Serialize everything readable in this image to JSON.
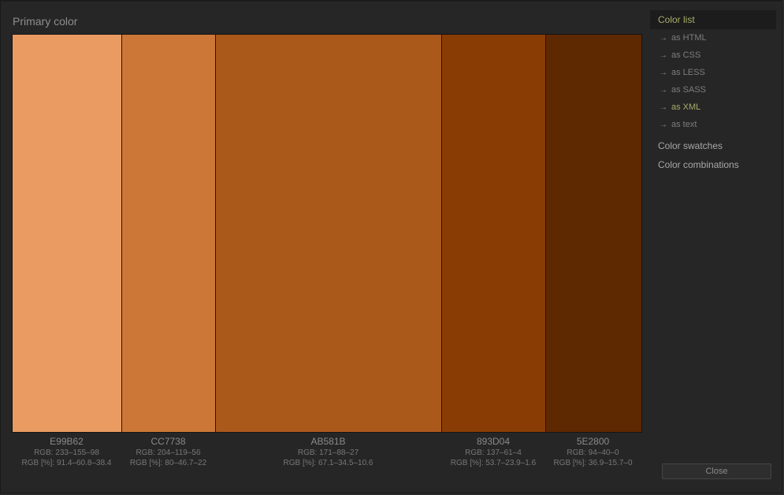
{
  "title": "Primary color",
  "swatches": [
    {
      "hex": "E99B62",
      "color": "#E99B62",
      "rgb": "RGB: 233–155–98",
      "rgb_pct": "RGB [%]: 91.4–60.8–38.4"
    },
    {
      "hex": "CC7738",
      "color": "#CC7738",
      "rgb": "RGB: 204–119–56",
      "rgb_pct": "RGB [%]: 80–46.7–22"
    },
    {
      "hex": "AB581B",
      "color": "#AB581B",
      "rgb": "RGB: 171–88–27",
      "rgb_pct": "RGB [%]: 67.1–34.5–10.6"
    },
    {
      "hex": "893D04",
      "color": "#893D04",
      "rgb": "RGB: 137–61–4",
      "rgb_pct": "RGB [%]: 53.7–23.9–1.6"
    },
    {
      "hex": "5E2800",
      "color": "#5E2800",
      "rgb": "RGB: 94–40–0",
      "rgb_pct": "RGB [%]: 36.9–15.7–0"
    }
  ],
  "sidebar": {
    "heading": "Color list",
    "items": [
      {
        "label": "as HTML",
        "icon": "arrow-right-icon"
      },
      {
        "label": "as CSS",
        "icon": "arrow-right-icon"
      },
      {
        "label": "as LESS",
        "icon": "arrow-right-icon"
      },
      {
        "label": "as SASS",
        "icon": "arrow-right-icon"
      },
      {
        "label": "as XML",
        "icon": "arrow-right-icon",
        "active": true
      },
      {
        "label": "as text",
        "icon": "arrow-right-icon"
      }
    ],
    "sections": [
      "Color swatches",
      "Color combinations"
    ]
  },
  "close_label": "Close",
  "colors": {
    "accent": "#a7ad6a",
    "background": "#262626"
  }
}
